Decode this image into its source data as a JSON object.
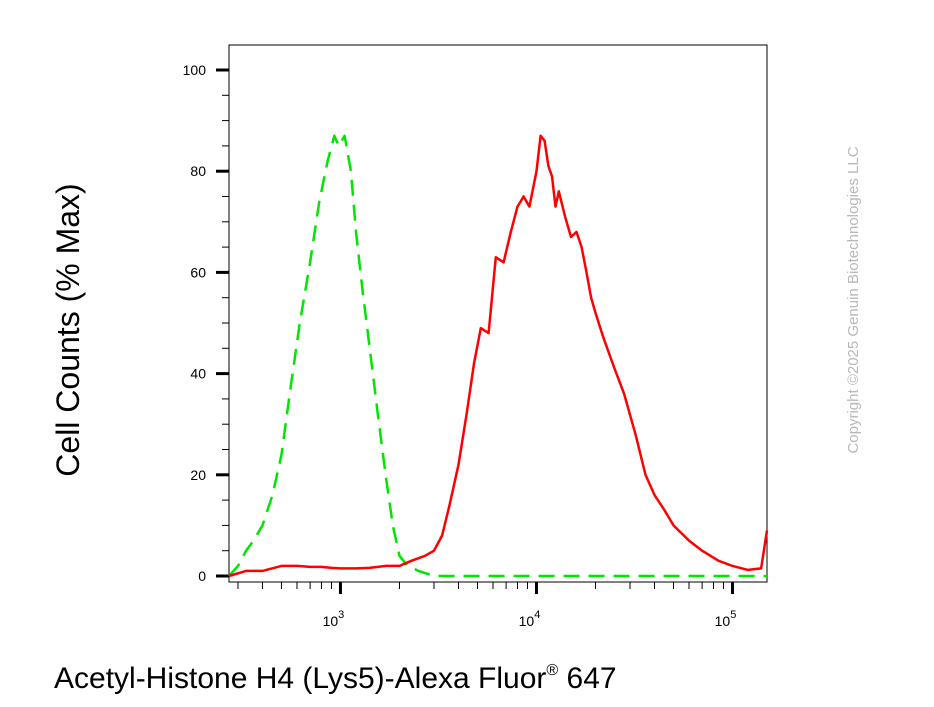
{
  "chart_data": {
    "type": "line",
    "xlabel": "Acetyl-Histone H4 (Lys5)-Alexa Fluor",
    "xlabel_sup": "®",
    "xlabel_suffix": " 647",
    "ylabel": "Cell Counts (% Max)",
    "x_scale": "log",
    "xlim": [
      270,
      150000
    ],
    "ylim": [
      0,
      105
    ],
    "grid": false,
    "legend": "none",
    "y_ticks": [
      "0",
      "20",
      "40",
      "60",
      "80",
      "100"
    ],
    "x_ticks": [
      {
        "base": "10",
        "exp": "3"
      },
      {
        "base": "10",
        "exp": "4"
      },
      {
        "base": "10",
        "exp": "5"
      }
    ],
    "series": [
      {
        "color": "#00e600",
        "dash": "dashed",
        "x": [
          270,
          300,
          330,
          360,
          400,
          450,
          500,
          560,
          620,
          700,
          780,
          860,
          930,
          980,
          1050,
          1130,
          1200,
          1300,
          1400,
          1550,
          1700,
          1850,
          2000,
          2200,
          2500,
          3000,
          3500,
          4000,
          6000,
          10000,
          20000,
          50000,
          100000,
          150000
        ],
        "y": [
          0,
          2,
          5,
          7,
          10,
          16,
          24,
          38,
          50,
          62,
          74,
          82,
          87,
          85,
          87,
          80,
          68,
          56,
          46,
          32,
          20,
          10,
          4,
          2,
          1,
          0,
          0,
          0,
          0,
          0,
          0,
          0,
          0,
          0
        ]
      },
      {
        "color": "#ff0000",
        "dash": "solid",
        "x": [
          270,
          330,
          400,
          500,
          600,
          700,
          800,
          900,
          1000,
          1200,
          1400,
          1700,
          2000,
          2300,
          2700,
          3000,
          3300,
          3600,
          4000,
          4400,
          4800,
          5200,
          5700,
          6200,
          6800,
          7400,
          8000,
          8600,
          9200,
          10000,
          10500,
          11000,
          11500,
          12000,
          12500,
          13000,
          14000,
          15000,
          16000,
          17000,
          18000,
          19000,
          20000,
          22000,
          25000,
          28000,
          32000,
          36000,
          40000,
          45000,
          50000,
          60000,
          70000,
          85000,
          100000,
          120000,
          140000,
          150000
        ],
        "y": [
          0,
          1,
          1,
          2,
          2,
          1.8,
          1.8,
          1.6,
          1.5,
          1.5,
          1.6,
          2,
          2,
          3,
          4,
          5,
          8,
          14,
          22,
          32,
          42,
          49,
          48,
          63,
          62,
          68,
          73,
          75,
          73,
          80,
          87,
          86,
          81,
          79,
          73,
          76,
          71,
          67,
          68,
          65,
          60,
          55,
          52,
          47,
          41,
          36,
          28,
          20,
          16,
          13,
          10,
          7,
          5,
          3,
          2,
          1.2,
          1.5,
          9
        ]
      }
    ]
  },
  "watermark": "Copyright ©2025 Genuin Biotechnologies LLC"
}
